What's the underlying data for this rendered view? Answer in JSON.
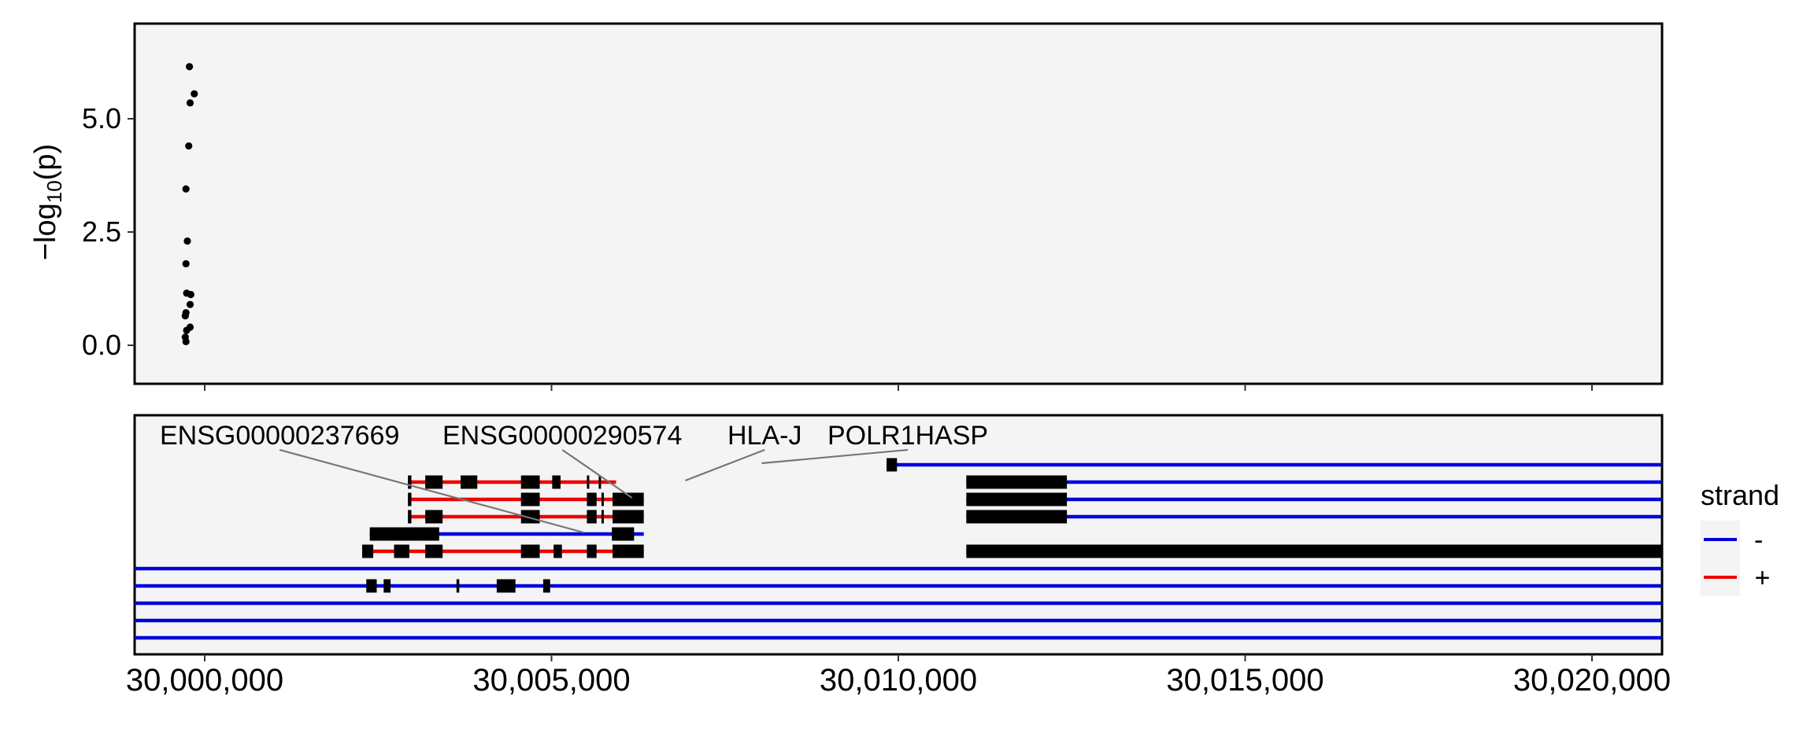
{
  "chart_data": [
    {
      "type": "scatter",
      "ylabel_main": "−log",
      "ylabel_sub": "10",
      "ylabel_tail": "(p)",
      "ylim": [
        -0.85,
        7.1
      ],
      "yticks": [
        0.0,
        2.5,
        5.0
      ],
      "ytick_labels": [
        "0.0",
        "2.5",
        "5.0"
      ],
      "points": [
        {
          "x": 29999750,
          "y": 6.15
        },
        {
          "x": 29999820,
          "y": 5.55
        },
        {
          "x": 29999760,
          "y": 5.35
        },
        {
          "x": 29999740,
          "y": 4.4
        },
        {
          "x": 29999700,
          "y": 3.45
        },
        {
          "x": 29999720,
          "y": 2.3
        },
        {
          "x": 29999700,
          "y": 1.8
        },
        {
          "x": 29999710,
          "y": 1.15
        },
        {
          "x": 29999770,
          "y": 1.12
        },
        {
          "x": 29999760,
          "y": 0.9
        },
        {
          "x": 29999700,
          "y": 0.72
        },
        {
          "x": 29999690,
          "y": 0.65
        },
        {
          "x": 29999760,
          "y": 0.4
        },
        {
          "x": 29999710,
          "y": 0.33
        },
        {
          "x": 29999690,
          "y": 0.18
        },
        {
          "x": 29999700,
          "y": 0.08
        }
      ]
    },
    {
      "type": "gene-track",
      "xlim": [
        29998960,
        30020980
      ],
      "xticks": [
        29999970,
        30004970,
        30009970,
        30014970,
        30019970
      ],
      "xtick_labels": [
        "30,000,000",
        "30,005,000",
        "30,010,000",
        "30,015,000",
        "30,020,000"
      ],
      "gene_labels": [
        {
          "text": "ENSG00000237669",
          "pointer_to": {
            "x": 30005430,
            "row": 3
          }
        },
        {
          "text": "ENSG00000290574",
          "pointer_to": {
            "x": 30006130,
            "row": 1
          }
        },
        {
          "text": "HLA-J",
          "pointer_to": {
            "x": 30006900,
            "row": 0
          }
        },
        {
          "text": "POLR1HASP",
          "pointer_to": {
            "x": 30008000,
            "row": -1
          }
        }
      ],
      "strand_colors": {
        "-": "#0000dd",
        "+": "#ee0000"
      },
      "transcripts": [
        {
          "row": -1,
          "strand": "-",
          "start": 30009800,
          "end": 30020980,
          "exons": [
            [
              30009800,
              30009950
            ]
          ]
        },
        {
          "row": 0,
          "strand": "+",
          "start": 30002900,
          "end": 30005900,
          "exons": [
            [
              30002900,
              30002950
            ],
            [
              30003150,
              30003400
            ],
            [
              30003660,
              30003900
            ],
            [
              30004530,
              30004800
            ],
            [
              30004980,
              30005100
            ],
            [
              30005480,
              30005510
            ],
            [
              30005650,
              30005680
            ]
          ]
        },
        {
          "row": 0,
          "strand": "-",
          "start": 30010950,
          "end": 30020980,
          "exons": [
            [
              30010950,
              30012400
            ]
          ]
        },
        {
          "row": 1,
          "strand": "+",
          "start": 30002900,
          "end": 30006300,
          "exons": [
            [
              30002900,
              30002950
            ],
            [
              30004530,
              30004800
            ],
            [
              30005480,
              30005620
            ],
            [
              30005690,
              30005720
            ],
            [
              30005850,
              30006300
            ]
          ]
        },
        {
          "row": 1,
          "strand": "-",
          "start": 30010950,
          "end": 30020980,
          "exons": [
            [
              30010950,
              30012400
            ]
          ]
        },
        {
          "row": 2,
          "strand": "+",
          "start": 30002900,
          "end": 30006300,
          "exons": [
            [
              30002900,
              30002950
            ],
            [
              30003150,
              30003400
            ],
            [
              30004530,
              30004800
            ],
            [
              30005480,
              30005620
            ],
            [
              30005690,
              30005720
            ],
            [
              30005850,
              30006300
            ]
          ]
        },
        {
          "row": 2,
          "strand": "-",
          "start": 30010950,
          "end": 30020980,
          "exons": [
            [
              30010950,
              30012400
            ]
          ]
        },
        {
          "row": 3,
          "strand": "-",
          "start": 30002350,
          "end": 30006300,
          "exons": [
            [
              30002350,
              30003350
            ],
            [
              30005840,
              30006160
            ]
          ]
        },
        {
          "row": 4,
          "strand": "+",
          "start": 30002240,
          "end": 30006300,
          "exons": [
            [
              30002240,
              30002400
            ],
            [
              30002700,
              30002920
            ],
            [
              30003150,
              30003400
            ],
            [
              30004530,
              30004800
            ],
            [
              30005000,
              30005120
            ],
            [
              30005480,
              30005620
            ],
            [
              30005850,
              30006300
            ]
          ]
        },
        {
          "row": 4,
          "strand": "-",
          "start": 30010950,
          "end": 30020980,
          "exons": [
            [
              30010950,
              30020980
            ]
          ]
        },
        {
          "row": 5,
          "strand": "-",
          "start": 29996100,
          "end": 30020980,
          "exons": [
            [
              29996100,
              29997850
            ]
          ]
        },
        {
          "row": 6,
          "strand": "-",
          "start": 29996100,
          "end": 30020980,
          "exons": [
            [
              29996100,
              29997850
            ],
            [
              29998400,
              29998600
            ],
            [
              30002300,
              30002450
            ],
            [
              30002550,
              30002650
            ],
            [
              30003600,
              30003640
            ],
            [
              30004180,
              30004450
            ],
            [
              30004850,
              30004950
            ]
          ]
        },
        {
          "row": 7,
          "strand": "-",
          "start": 29996100,
          "end": 30020980,
          "exons": [
            [
              29996100,
              29997850
            ]
          ]
        },
        {
          "row": 8,
          "strand": "-",
          "start": 29996100,
          "end": 30020980,
          "exons": [
            [
              29996100,
              29997850
            ]
          ]
        },
        {
          "row": 9,
          "strand": "-",
          "start": 29998960,
          "end": 30020980,
          "exons": []
        }
      ]
    }
  ],
  "legend": {
    "title": "strand",
    "items": [
      {
        "label": "-",
        "color": "#0000dd"
      },
      {
        "label": "+",
        "color": "#ee0000"
      }
    ]
  }
}
